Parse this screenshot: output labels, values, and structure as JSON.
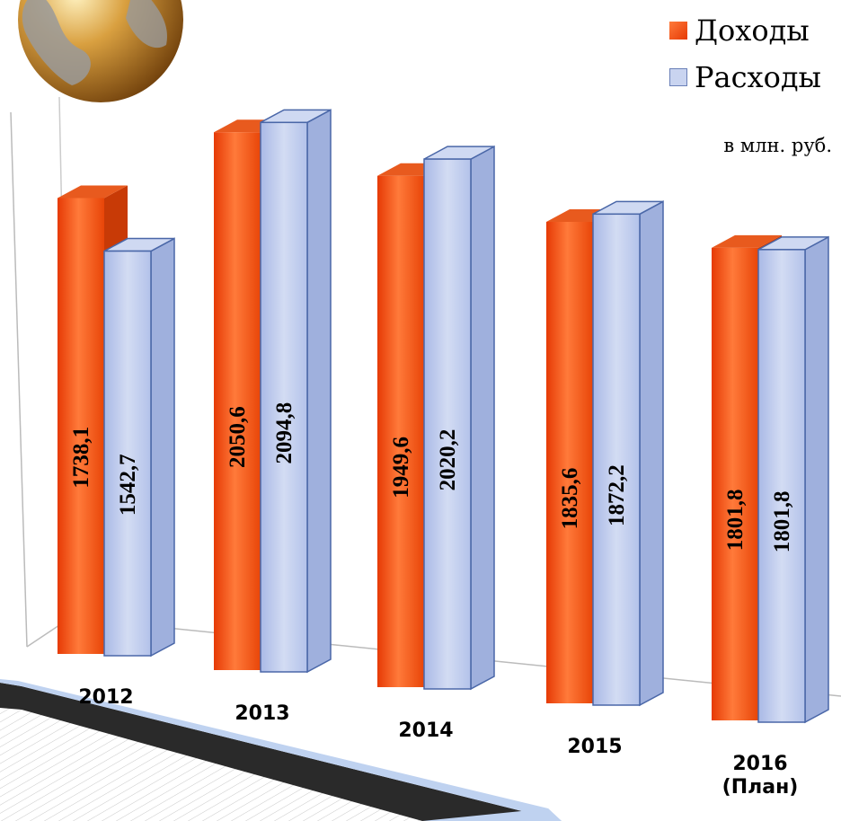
{
  "chart_data": {
    "type": "bar",
    "categories": [
      "2012",
      "2013",
      "2014",
      "2015",
      "2016 (План)"
    ],
    "category_lines": [
      [
        "2012"
      ],
      [
        "2013"
      ],
      [
        "2014"
      ],
      [
        "2015"
      ],
      [
        "2016",
        "(План)"
      ]
    ],
    "series": [
      {
        "name": "Доходы",
        "values": [
          1738.1,
          2050.6,
          1949.6,
          1835.6,
          1801.8
        ],
        "labels": [
          "1738,1",
          "2050,6",
          "1949,6",
          "1835,6",
          "1801,8"
        ],
        "color": "#f04a0e"
      },
      {
        "name": "Расходы",
        "values": [
          1542.7,
          2094.8,
          2020.2,
          1872.2,
          1801.8
        ],
        "labels": [
          "1542,7",
          "2094,8",
          "2020,2",
          "1872,2",
          "1801,8"
        ],
        "color": "#b9c6ea"
      }
    ],
    "unit": "в млн. руб.",
    "title": "",
    "xlabel": "",
    "ylabel": "",
    "ylim": [
      0,
      2200
    ],
    "legend": "top-right",
    "grid": false
  }
}
